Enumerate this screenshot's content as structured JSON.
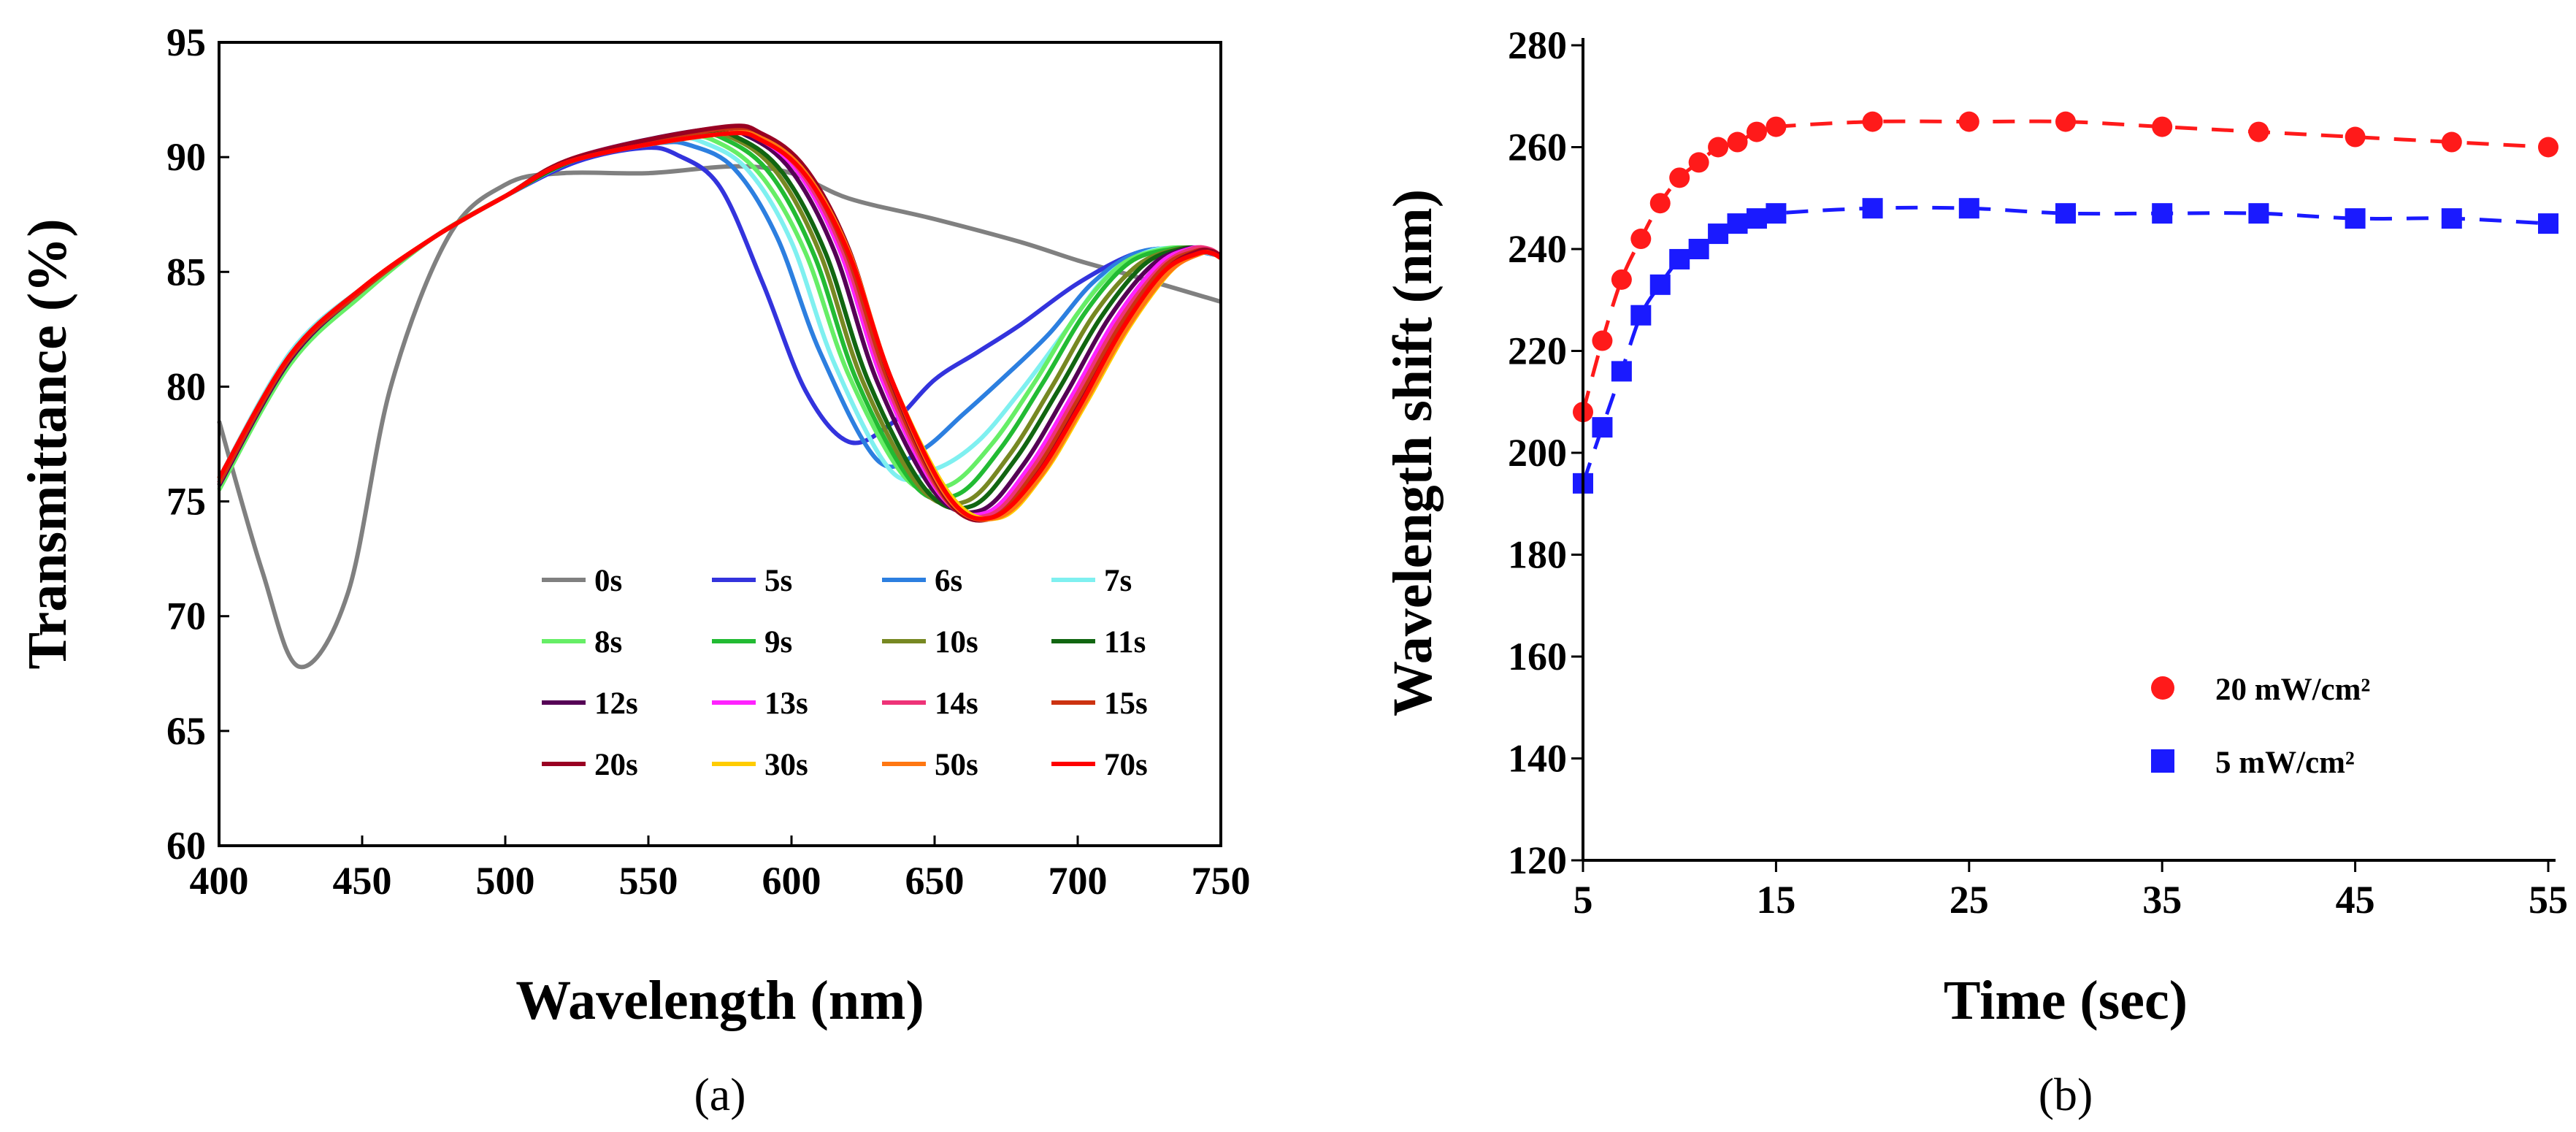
{
  "chart_data": [
    {
      "type": "line",
      "panel_label": "(a)",
      "xlabel": "Wavelength  (nm)",
      "ylabel": "Transmittance  (%)",
      "xlim": [
        400,
        750
      ],
      "ylim": [
        60,
        95
      ],
      "xticks": [
        "400",
        "450",
        "500",
        "550",
        "600",
        "650",
        "700",
        "750"
      ],
      "yticks": [
        "60",
        "65",
        "70",
        "75",
        "80",
        "85",
        "90",
        "95"
      ],
      "legend_position": "bottom-right, 4 columns",
      "series": [
        {
          "name": "0s",
          "color": "#808080",
          "x": [
            400,
            415,
            428,
            445,
            460,
            480,
            500,
            520,
            550,
            580,
            600,
            620,
            650,
            680,
            700,
            720,
            750
          ],
          "y": [
            78.5,
            72,
            67.8,
            71,
            80,
            86.5,
            88.8,
            89.3,
            89.3,
            89.6,
            89.3,
            88.2,
            87.3,
            86.3,
            85.5,
            84.8,
            83.7
          ]
        },
        {
          "name": "5s",
          "color": "#3333dd",
          "x": [
            400,
            425,
            450,
            475,
            500,
            525,
            548,
            560,
            575,
            590,
            605,
            620,
            635,
            650,
            665,
            680,
            700,
            720,
            735,
            750
          ],
          "y": [
            76,
            81.5,
            84.3,
            86.5,
            88.3,
            89.8,
            90.4,
            90.1,
            88.7,
            84.5,
            79.8,
            77.6,
            78.4,
            80.3,
            81.5,
            82.7,
            84.5,
            85.8,
            86,
            85.7
          ]
        },
        {
          "name": "6s",
          "color": "#2c7fe0",
          "x": [
            400,
            425,
            450,
            475,
            500,
            525,
            553,
            565,
            580,
            595,
            610,
            630,
            645,
            660,
            675,
            690,
            705,
            720,
            735,
            750
          ],
          "y": [
            76,
            81.5,
            84.3,
            86.5,
            88.3,
            89.9,
            90.6,
            90.5,
            89.5,
            86.5,
            81.5,
            76.8,
            77.2,
            78.8,
            80.5,
            82.3,
            84.5,
            85.8,
            86,
            85.7
          ]
        },
        {
          "name": "7s",
          "color": "#7ff0f0",
          "x": [
            400,
            425,
            450,
            475,
            500,
            525,
            557,
            570,
            585,
            600,
            615,
            635,
            650,
            665,
            680,
            695,
            710,
            725,
            738,
            750
          ],
          "y": [
            76,
            81.5,
            84.3,
            86.5,
            88.3,
            89.9,
            90.8,
            90.6,
            89.4,
            86.3,
            81,
            76.3,
            76.4,
            77.6,
            79.8,
            82.3,
            84.8,
            85.9,
            86,
            85.7
          ]
        },
        {
          "name": "8s",
          "color": "#66ee66",
          "x": [
            400,
            425,
            450,
            475,
            500,
            525,
            560,
            575,
            590,
            605,
            620,
            640,
            655,
            670,
            685,
            700,
            715,
            730,
            740,
            750
          ],
          "y": [
            75.5,
            81,
            84,
            86.5,
            88.3,
            89.9,
            90.9,
            90.6,
            89.1,
            85.8,
            80.5,
            76,
            75.7,
            77.5,
            80.2,
            83.2,
            85.3,
            86,
            86,
            85.7
          ]
        },
        {
          "name": "9s",
          "color": "#22bb33",
          "x": [
            400,
            425,
            450,
            475,
            500,
            525,
            563,
            578,
            593,
            608,
            623,
            643,
            658,
            673,
            688,
            703,
            718,
            733,
            742,
            750
          ],
          "y": [
            75.7,
            81.2,
            84.2,
            86.5,
            88.3,
            89.9,
            91,
            90.7,
            89.2,
            85.7,
            80.2,
            75.7,
            75.3,
            77.3,
            80.2,
            83.3,
            85.4,
            86,
            86,
            85.7
          ]
        },
        {
          "name": "10s",
          "color": "#778822",
          "x": [
            400,
            425,
            450,
            475,
            500,
            525,
            565,
            580,
            595,
            610,
            625,
            645,
            661,
            676,
            691,
            706,
            721,
            735,
            743,
            750
          ],
          "y": [
            75.7,
            81.2,
            84.2,
            86.5,
            88.3,
            89.9,
            91,
            90.8,
            89.3,
            85.8,
            80.2,
            75.6,
            75,
            77,
            80,
            83.2,
            85.3,
            86,
            86,
            85.7
          ]
        },
        {
          "name": "11s",
          "color": "#116611",
          "x": [
            400,
            425,
            450,
            475,
            500,
            525,
            567,
            582,
            597,
            612,
            627,
            647,
            663,
            678,
            693,
            708,
            723,
            736,
            744,
            750
          ],
          "y": [
            75.7,
            81.2,
            84.2,
            86.5,
            88.3,
            89.9,
            91.1,
            90.8,
            89.3,
            85.8,
            80.2,
            75.5,
            74.8,
            76.8,
            79.8,
            83,
            85.3,
            86,
            86,
            85.7
          ]
        },
        {
          "name": "12s",
          "color": "#550055",
          "x": [
            400,
            425,
            450,
            475,
            500,
            525,
            570,
            585,
            600,
            615,
            630,
            650,
            666,
            681,
            696,
            711,
            726,
            738,
            745,
            750
          ],
          "y": [
            75.7,
            81.2,
            84.2,
            86.5,
            88.3,
            90,
            91.2,
            90.9,
            89.4,
            85.9,
            80.2,
            75.4,
            74.6,
            76.6,
            79.7,
            83,
            85.3,
            86,
            86,
            85.7
          ]
        },
        {
          "name": "13s",
          "color": "#ff22ff",
          "x": [
            400,
            425,
            450,
            475,
            500,
            525,
            572,
            587,
            602,
            617,
            632,
            652,
            668,
            683,
            698,
            713,
            728,
            739,
            745,
            750
          ],
          "y": [
            75.8,
            81.3,
            84.2,
            86.5,
            88.3,
            90,
            91.2,
            90.9,
            89.4,
            85.9,
            80.2,
            75.3,
            74.5,
            76.5,
            79.6,
            82.9,
            85.3,
            86,
            86,
            85.7
          ]
        },
        {
          "name": "14s",
          "color": "#ee3377",
          "x": [
            400,
            425,
            450,
            475,
            500,
            525,
            573,
            588,
            603,
            618,
            633,
            653,
            669,
            684,
            699,
            714,
            729,
            740,
            746,
            750
          ],
          "y": [
            75.8,
            81.3,
            84.2,
            86.5,
            88.3,
            90,
            91.2,
            90.9,
            89.4,
            85.9,
            80.2,
            75.2,
            74.4,
            76.4,
            79.5,
            82.8,
            85.2,
            86,
            86,
            85.7
          ]
        },
        {
          "name": "15s",
          "color": "#cc3311",
          "x": [
            400,
            425,
            450,
            475,
            500,
            525,
            574,
            589,
            604,
            619,
            634,
            654,
            670,
            685,
            700,
            715,
            730,
            741,
            746,
            750
          ],
          "y": [
            75.8,
            81.3,
            84.2,
            86.5,
            88.3,
            90,
            91.2,
            90.9,
            89.4,
            85.9,
            80.2,
            75.1,
            74.3,
            76.3,
            79.4,
            82.7,
            85.2,
            85.9,
            85.9,
            85.7
          ]
        },
        {
          "name": "20s",
          "color": "#990022",
          "x": [
            400,
            425,
            450,
            475,
            500,
            525,
            575,
            590,
            605,
            620,
            635,
            655,
            671,
            686,
            701,
            716,
            731,
            742,
            747,
            750
          ],
          "y": [
            76,
            81.4,
            84.3,
            86.5,
            88.3,
            90,
            91.3,
            91,
            89.5,
            86,
            80.2,
            75,
            74.3,
            76.2,
            79.3,
            82.6,
            85.1,
            85.9,
            85.9,
            85.7
          ]
        },
        {
          "name": "30s",
          "color": "#ffcc00",
          "x": [
            400,
            425,
            450,
            475,
            500,
            525,
            575,
            590,
            605,
            620,
            635,
            656,
            673,
            688,
            703,
            718,
            733,
            743,
            747,
            750
          ],
          "y": [
            76,
            81.4,
            84.3,
            86.5,
            88.3,
            89.9,
            91,
            90.8,
            89.3,
            85.9,
            80.3,
            75.2,
            74.3,
            76.2,
            79.3,
            82.6,
            85.1,
            85.8,
            85.8,
            85.6
          ]
        },
        {
          "name": "50s",
          "color": "#ff7711",
          "x": [
            400,
            425,
            450,
            475,
            500,
            525,
            575,
            590,
            605,
            620,
            635,
            655,
            672,
            687,
            702,
            717,
            732,
            743,
            747,
            750
          ],
          "y": [
            76,
            81.4,
            84.3,
            86.5,
            88.3,
            89.9,
            91,
            90.8,
            89.3,
            85.9,
            80.3,
            75.1,
            74.3,
            76.1,
            79.2,
            82.5,
            85,
            85.8,
            85.8,
            85.6
          ]
        },
        {
          "name": "70s",
          "color": "#ff0000",
          "x": [
            400,
            425,
            450,
            475,
            500,
            525,
            575,
            590,
            605,
            620,
            635,
            655,
            670,
            685,
            700,
            715,
            730,
            742,
            747,
            750
          ],
          "y": [
            76,
            81.4,
            84.3,
            86.5,
            88.3,
            89.9,
            91,
            90.7,
            89.2,
            85.8,
            80.3,
            75.2,
            74.3,
            76,
            79,
            82.4,
            85,
            85.8,
            85.8,
            85.6
          ]
        }
      ]
    },
    {
      "type": "scatter",
      "panel_label": "(b)",
      "xlabel": "Time  (sec)",
      "ylabel": "Wavelength shift  (nm)",
      "xlim": [
        5,
        55
      ],
      "ylim": [
        120,
        280
      ],
      "xticks": [
        "5",
        "15",
        "25",
        "35",
        "45",
        "55"
      ],
      "yticks": [
        "120",
        "140",
        "160",
        "180",
        "200",
        "220",
        "240",
        "260",
        "280"
      ],
      "legend_position": "lower-right",
      "series": [
        {
          "name": "20 mW/cm²",
          "color": "#ff1a1a",
          "marker": "circle",
          "line": "dashed",
          "x": [
            5,
            6,
            7,
            8,
            9,
            10,
            11,
            12,
            13,
            14,
            15,
            20,
            25,
            30,
            35,
            40,
            45,
            50,
            55
          ],
          "y": [
            208,
            222,
            234,
            242,
            249,
            254,
            257,
            260,
            261,
            263,
            264,
            265,
            265,
            265,
            264,
            263,
            262,
            261,
            260
          ]
        },
        {
          "name": "5 mW/cm²",
          "color": "#1a1aff",
          "marker": "square",
          "line": "dashed",
          "x": [
            5,
            6,
            7,
            8,
            9,
            10,
            11,
            12,
            13,
            14,
            15,
            20,
            25,
            30,
            35,
            40,
            45,
            50,
            55
          ],
          "y": [
            194,
            205,
            216,
            227,
            233,
            238,
            240,
            243,
            245,
            246,
            247,
            248,
            248,
            247,
            247,
            247,
            246,
            246,
            245
          ]
        }
      ]
    }
  ]
}
